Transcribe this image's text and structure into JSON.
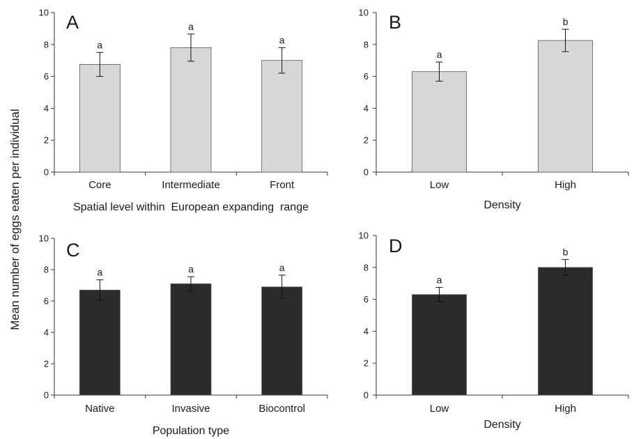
{
  "figure": {
    "ylabel": "Mean number of eggs eaten per individual"
  },
  "chart_data": [
    {
      "type": "bar",
      "panel": "A",
      "categories": [
        "Core",
        "Intermediate",
        "Front"
      ],
      "values": [
        6.75,
        7.8,
        7.0
      ],
      "errors": [
        0.75,
        0.85,
        0.8
      ],
      "significance": [
        "a",
        "a",
        "a"
      ],
      "xlabel": "Spatial level within  European expanding  range",
      "ylim": [
        0,
        10
      ],
      "yticks": [
        0,
        2,
        4,
        6,
        8,
        10
      ],
      "bar_color": "#d8d8d8"
    },
    {
      "type": "bar",
      "panel": "B",
      "categories": [
        "Low",
        "High"
      ],
      "values": [
        6.3,
        8.25
      ],
      "errors": [
        0.6,
        0.7
      ],
      "significance": [
        "a",
        "b"
      ],
      "xlabel": "Density",
      "ylim": [
        0,
        10
      ],
      "yticks": [
        0,
        2,
        4,
        6,
        8,
        10
      ],
      "bar_color": "#d8d8d8"
    },
    {
      "type": "bar",
      "panel": "C",
      "categories": [
        "Native",
        "Invasive",
        "Biocontrol"
      ],
      "values": [
        6.7,
        7.1,
        6.9
      ],
      "errors": [
        0.65,
        0.45,
        0.75
      ],
      "significance": [
        "a",
        "a",
        "a"
      ],
      "xlabel": "Population type",
      "ylim": [
        0,
        10
      ],
      "yticks": [
        0,
        2,
        4,
        6,
        8,
        10
      ],
      "bar_color": "#2b2b2b"
    },
    {
      "type": "bar",
      "panel": "D",
      "categories": [
        "Low",
        "High"
      ],
      "values": [
        6.3,
        8.0
      ],
      "errors": [
        0.45,
        0.5
      ],
      "significance": [
        "a",
        "b"
      ],
      "xlabel": "Density",
      "ylim": [
        0,
        10
      ],
      "yticks": [
        0,
        2,
        4,
        6,
        8,
        10
      ],
      "bar_color": "#2b2b2b"
    }
  ]
}
